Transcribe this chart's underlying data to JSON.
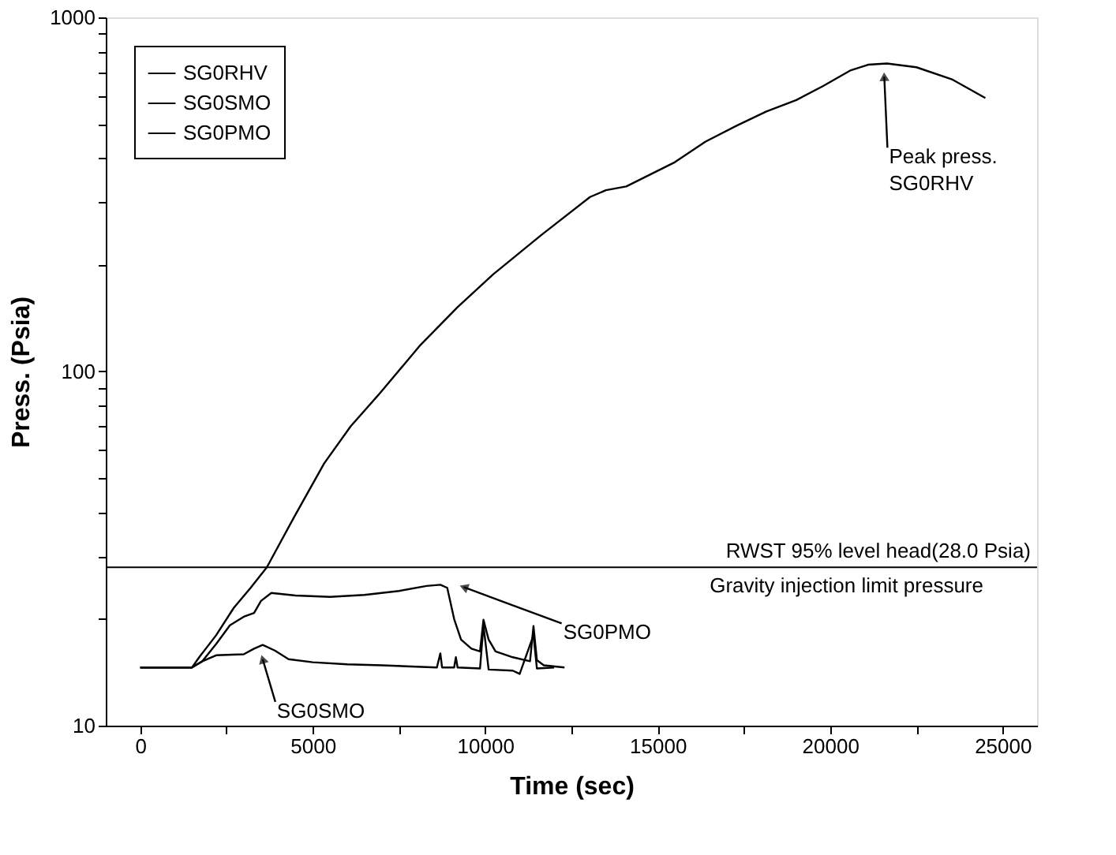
{
  "chart_data": {
    "type": "line",
    "xlabel": "Time (sec)",
    "ylabel": "Press. (Psia)",
    "log": "y",
    "xlim": [
      -1000,
      26000
    ],
    "ylim": [
      10,
      1000
    ],
    "xticks": [
      0,
      {
        "value": 2500,
        "label": null
      },
      5000,
      {
        "value": 7500,
        "label": null
      },
      10000,
      {
        "value": 12500,
        "label": null
      },
      15000,
      {
        "value": 17500,
        "label": null
      },
      20000,
      {
        "value": 22500,
        "label": null
      },
      25000
    ],
    "yticks": [
      10,
      {
        "value": 20,
        "label": null
      },
      {
        "value": 30,
        "label": null
      },
      {
        "value": 40,
        "label": null
      },
      {
        "value": 50,
        "label": null
      },
      {
        "value": 60,
        "label": null
      },
      {
        "value": 70,
        "label": null
      },
      {
        "value": 80,
        "label": null
      },
      {
        "value": 90,
        "label": null
      },
      100,
      {
        "value": 200,
        "label": null
      },
      {
        "value": 300,
        "label": null
      },
      {
        "value": 400,
        "label": null
      },
      {
        "value": 500,
        "label": null
      },
      {
        "value": 600,
        "label": null
      },
      {
        "value": 700,
        "label": null
      },
      {
        "value": 800,
        "label": null
      },
      {
        "value": 900,
        "label": null
      },
      1000
    ],
    "grid": false,
    "legend": "top left",
    "line_style": "solid",
    "marker": "none",
    "series": [
      {
        "name": "SG0RHV",
        "color": "#000000",
        "x": [
          0,
          1500,
          1730,
          2200,
          2710,
          3200,
          3670,
          4460,
          5330,
          6100,
          6910,
          8130,
          9200,
          10230,
          11630,
          13040,
          13500,
          14090,
          15500,
          16390,
          17300,
          18150,
          19020,
          19800,
          20600,
          21100,
          21650,
          22500,
          23550,
          24500
        ],
        "values": [
          14.6,
          14.6,
          15.7,
          18,
          21.5,
          24.5,
          28,
          38.8,
          55,
          70,
          86,
          119,
          152,
          188,
          243,
          311,
          325,
          333,
          390,
          446,
          495,
          542,
          584,
          640,
          709,
          735,
          741,
          723,
          667,
          592
        ]
      },
      {
        "name": "SG0SMO",
        "color": "#000000",
        "x": [
          0,
          1500,
          1800,
          2200,
          3000,
          3300,
          3550,
          3900,
          4300,
          5000,
          6000,
          7000,
          8600,
          8700,
          8750,
          9100,
          9150,
          9200,
          9850,
          9950,
          10100,
          10800,
          11000,
          11400,
          11500,
          12000
        ],
        "values": [
          14.6,
          14.6,
          15.2,
          15.8,
          15.9,
          16.5,
          16.9,
          16.3,
          15.4,
          15.1,
          14.9,
          14.8,
          14.6,
          16,
          14.6,
          14.6,
          15.6,
          14.6,
          14.5,
          19.2,
          14.4,
          14.3,
          14.0,
          18,
          14.5,
          14.6
        ]
      },
      {
        "name": "SG0PMO",
        "color": "#000000",
        "x": [
          0,
          1500,
          1800,
          2200,
          2600,
          3000,
          3300,
          3500,
          3800,
          4500,
          5500,
          6500,
          7500,
          8300,
          8700,
          8900,
          9100,
          9300,
          9600,
          9850,
          9950,
          10100,
          10300,
          10800,
          11300,
          11400,
          11500,
          11700,
          12300
        ],
        "values": [
          14.6,
          14.6,
          15.2,
          17,
          19.2,
          20.3,
          20.8,
          22.5,
          23.7,
          23.3,
          23.1,
          23.4,
          24.0,
          24.8,
          25.0,
          24.5,
          20,
          17.5,
          16.5,
          16.2,
          19.9,
          17.5,
          16.2,
          15.6,
          15.2,
          19.1,
          15.3,
          14.8,
          14.6
        ]
      }
    ],
    "ref_lines": [
      {
        "axis": "y",
        "value": 28.0,
        "label": "RWST 95% level head(28.0 Psia)",
        "color": "#000000",
        "line_style": "solid"
      }
    ],
    "annotations": [
      {
        "text": "Peak press.\nSG0RHV",
        "x": 21570,
        "y": 680
      },
      {
        "text": "SG0PMO",
        "x": 9380,
        "y": 24.6
      },
      {
        "text": "SG0SMO",
        "x": 3550,
        "y": 15.4
      },
      "Gravity injection limit pressure"
    ]
  }
}
